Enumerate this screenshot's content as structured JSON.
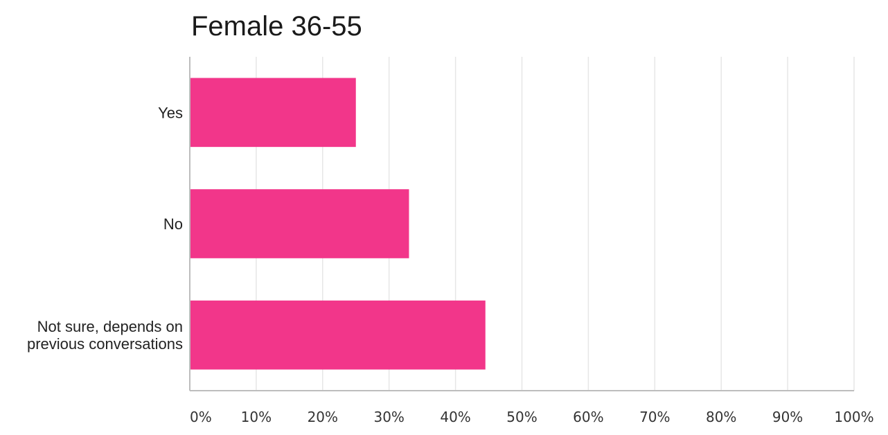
{
  "chart_data": {
    "type": "bar",
    "orientation": "horizontal",
    "title": "Female 36-55",
    "xlabel": "",
    "ylabel": "",
    "categories": [
      [
        "Yes"
      ],
      [
        "No"
      ],
      [
        "Not sure, depends on",
        "previous conversations"
      ]
    ],
    "values": [
      25,
      33,
      44.5
    ],
    "xlim": [
      0,
      100
    ],
    "xticks": [
      "0%",
      "10%",
      "20%",
      "30%",
      "40%",
      "50%",
      "60%",
      "70%",
      "80%",
      "90%",
      "100%"
    ],
    "grid": true,
    "legend": "none",
    "colors": {
      "bar": "#f2368a",
      "grid": "#e6e6e6",
      "axis": "#bdbdbd"
    }
  }
}
